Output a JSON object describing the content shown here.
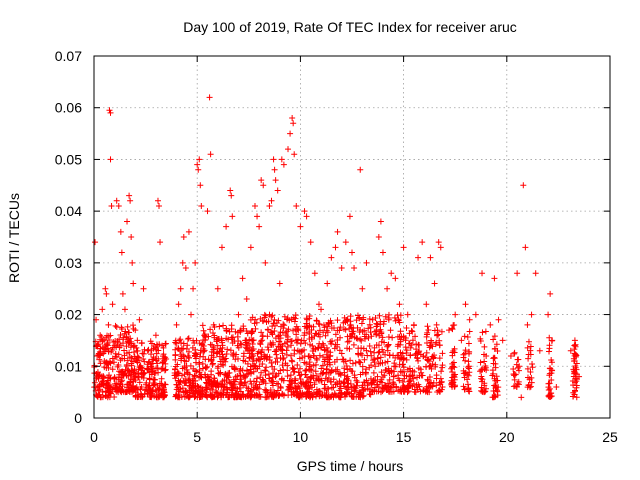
{
  "chart_data": {
    "type": "scatter",
    "title": "Day 100 of 2019, Rate Of TEC Index for receiver aruc",
    "xlabel": "GPS time / hours",
    "ylabel": "ROTI / TECUs",
    "xlim": [
      0,
      25
    ],
    "ylim": [
      0,
      0.07
    ],
    "xticks": [
      "0",
      "5",
      "10",
      "15",
      "20",
      "25"
    ],
    "yticks": [
      "0",
      "0.01",
      "0.02",
      "0.03",
      "0.04",
      "0.05",
      "0.06",
      "0.07"
    ],
    "grid": true,
    "marker": "plus",
    "color": "#ff0000",
    "series": [
      {
        "values": [
          [
            0.05,
            0.034
          ],
          [
            0.1,
            0.019
          ],
          [
            0.15,
            0.012
          ],
          [
            0.2,
            0.008
          ],
          [
            0.3,
            0.016
          ],
          [
            0.4,
            0.021
          ],
          [
            0.5,
            0.011
          ],
          [
            0.55,
            0.025
          ],
          [
            0.6,
            0.024
          ],
          [
            0.7,
            0.018
          ],
          [
            0.75,
            0.0595
          ],
          [
            0.8,
            0.059
          ],
          [
            0.8,
            0.05
          ],
          [
            0.85,
            0.041
          ],
          [
            0.9,
            0.022
          ],
          [
            1.0,
            0.014
          ],
          [
            1.1,
            0.042
          ],
          [
            1.2,
            0.041
          ],
          [
            1.3,
            0.036
          ],
          [
            1.35,
            0.032
          ],
          [
            1.4,
            0.024
          ],
          [
            1.5,
            0.021
          ],
          [
            1.6,
            0.038
          ],
          [
            1.7,
            0.043
          ],
          [
            1.75,
            0.042
          ],
          [
            1.8,
            0.035
          ],
          [
            1.85,
            0.03
          ],
          [
            1.9,
            0.026
          ],
          [
            2.0,
            0.017
          ],
          [
            2.1,
            0.015
          ],
          [
            2.2,
            0.019
          ],
          [
            2.4,
            0.025
          ],
          [
            2.6,
            0.013
          ],
          [
            2.8,
            0.009
          ],
          [
            3.0,
            0.016
          ],
          [
            3.1,
            0.042
          ],
          [
            3.15,
            0.041
          ],
          [
            3.2,
            0.034
          ],
          [
            3.3,
            0.014
          ],
          [
            3.4,
            0.005
          ],
          [
            4.0,
            0.018
          ],
          [
            4.1,
            0.022
          ],
          [
            4.2,
            0.025
          ],
          [
            4.3,
            0.03
          ],
          [
            4.35,
            0.035
          ],
          [
            4.45,
            0.029
          ],
          [
            4.6,
            0.036
          ],
          [
            4.7,
            0.02
          ],
          [
            4.8,
            0.025
          ],
          [
            4.9,
            0.03
          ],
          [
            5.0,
            0.049
          ],
          [
            5.05,
            0.048
          ],
          [
            5.1,
            0.05
          ],
          [
            5.15,
            0.045
          ],
          [
            5.2,
            0.041
          ],
          [
            5.5,
            0.04
          ],
          [
            5.6,
            0.062
          ],
          [
            5.65,
            0.051
          ],
          [
            5.8,
            0.018
          ],
          [
            6.0,
            0.025
          ],
          [
            6.2,
            0.033
          ],
          [
            6.4,
            0.037
          ],
          [
            6.6,
            0.044
          ],
          [
            6.65,
            0.043
          ],
          [
            6.7,
            0.039
          ],
          [
            7.0,
            0.02
          ],
          [
            7.2,
            0.027
          ],
          [
            7.4,
            0.023
          ],
          [
            7.6,
            0.033
          ],
          [
            7.8,
            0.041
          ],
          [
            7.9,
            0.039
          ],
          [
            8.0,
            0.037
          ],
          [
            8.1,
            0.046
          ],
          [
            8.2,
            0.045
          ],
          [
            8.3,
            0.03
          ],
          [
            8.5,
            0.041
          ],
          [
            8.6,
            0.042
          ],
          [
            8.7,
            0.05
          ],
          [
            8.75,
            0.048
          ],
          [
            8.8,
            0.046
          ],
          [
            8.9,
            0.044
          ],
          [
            9.0,
            0.026
          ],
          [
            9.1,
            0.05
          ],
          [
            9.2,
            0.049
          ],
          [
            9.4,
            0.052
          ],
          [
            9.5,
            0.055
          ],
          [
            9.6,
            0.058
          ],
          [
            9.65,
            0.057
          ],
          [
            9.7,
            0.051
          ],
          [
            9.8,
            0.041
          ],
          [
            10.0,
            0.037
          ],
          [
            10.2,
            0.04
          ],
          [
            10.3,
            0.039
          ],
          [
            10.5,
            0.034
          ],
          [
            10.7,
            0.028
          ],
          [
            10.9,
            0.022
          ],
          [
            11.0,
            0.021
          ],
          [
            11.3,
            0.026
          ],
          [
            11.5,
            0.031
          ],
          [
            11.7,
            0.033
          ],
          [
            11.8,
            0.036
          ],
          [
            12.0,
            0.029
          ],
          [
            12.2,
            0.034
          ],
          [
            12.4,
            0.039
          ],
          [
            12.5,
            0.032
          ],
          [
            12.6,
            0.029
          ],
          [
            12.9,
            0.048
          ],
          [
            13.0,
            0.025
          ],
          [
            13.2,
            0.03
          ],
          [
            13.5,
            0.019
          ],
          [
            13.8,
            0.035
          ],
          [
            13.9,
            0.038
          ],
          [
            14.0,
            0.032
          ],
          [
            14.2,
            0.025
          ],
          [
            14.4,
            0.028
          ],
          [
            14.6,
            0.027
          ],
          [
            14.8,
            0.022
          ],
          [
            15.0,
            0.033
          ],
          [
            15.2,
            0.02
          ],
          [
            15.5,
            0.018
          ],
          [
            15.7,
            0.031
          ],
          [
            15.9,
            0.034
          ],
          [
            16.1,
            0.022
          ],
          [
            16.3,
            0.031
          ],
          [
            16.5,
            0.026
          ],
          [
            16.6,
            0.018
          ],
          [
            16.7,
            0.034
          ],
          [
            16.8,
            0.033
          ],
          [
            17.2,
            0.017
          ],
          [
            17.5,
            0.02
          ],
          [
            17.8,
            0.015
          ],
          [
            18.0,
            0.022
          ],
          [
            18.2,
            0.019
          ],
          [
            18.5,
            0.02
          ],
          [
            18.8,
            0.028
          ],
          [
            19.0,
            0.012
          ],
          [
            19.2,
            0.018
          ],
          [
            19.4,
            0.027
          ],
          [
            19.6,
            0.019
          ],
          [
            19.8,
            0.015
          ],
          [
            20.2,
            0.012
          ],
          [
            20.5,
            0.028
          ],
          [
            20.6,
            0.01
          ],
          [
            20.7,
            0.004
          ],
          [
            20.8,
            0.045
          ],
          [
            20.9,
            0.033
          ],
          [
            21.0,
            0.018
          ],
          [
            21.2,
            0.02
          ],
          [
            21.4,
            0.028
          ],
          [
            21.6,
            0.013
          ],
          [
            22.0,
            0.02
          ],
          [
            22.1,
            0.024
          ],
          [
            22.2,
            0.015
          ],
          [
            22.4,
            0.006
          ],
          [
            23.1,
            0.013
          ],
          [
            23.3,
            0.015
          ],
          [
            23.5,
            0.008
          ]
        ],
        "bands": [
          [
            0.0,
            1.0,
            0.004,
            0.016,
            140
          ],
          [
            1.0,
            2.0,
            0.005,
            0.018,
            150
          ],
          [
            2.0,
            3.5,
            0.004,
            0.015,
            190
          ],
          [
            3.9,
            5.0,
            0.004,
            0.016,
            150
          ],
          [
            5.0,
            6.0,
            0.004,
            0.018,
            140
          ],
          [
            6.0,
            7.5,
            0.004,
            0.018,
            190
          ],
          [
            7.5,
            9.0,
            0.004,
            0.02,
            200
          ],
          [
            9.0,
            10.5,
            0.004,
            0.02,
            200
          ],
          [
            10.5,
            12.0,
            0.004,
            0.019,
            180
          ],
          [
            12.0,
            13.5,
            0.004,
            0.02,
            170
          ],
          [
            13.5,
            15.0,
            0.005,
            0.02,
            160
          ],
          [
            15.0,
            16.9,
            0.005,
            0.018,
            170
          ],
          [
            17.3,
            17.5,
            0.006,
            0.018,
            35
          ],
          [
            17.9,
            18.2,
            0.005,
            0.018,
            35
          ],
          [
            18.7,
            19.0,
            0.005,
            0.017,
            30
          ],
          [
            19.3,
            19.6,
            0.004,
            0.017,
            35
          ],
          [
            20.3,
            20.6,
            0.006,
            0.014,
            20
          ],
          [
            21.0,
            21.3,
            0.005,
            0.015,
            20
          ],
          [
            22.0,
            22.2,
            0.004,
            0.016,
            30
          ],
          [
            23.2,
            23.4,
            0.004,
            0.015,
            40
          ]
        ]
      }
    ]
  }
}
